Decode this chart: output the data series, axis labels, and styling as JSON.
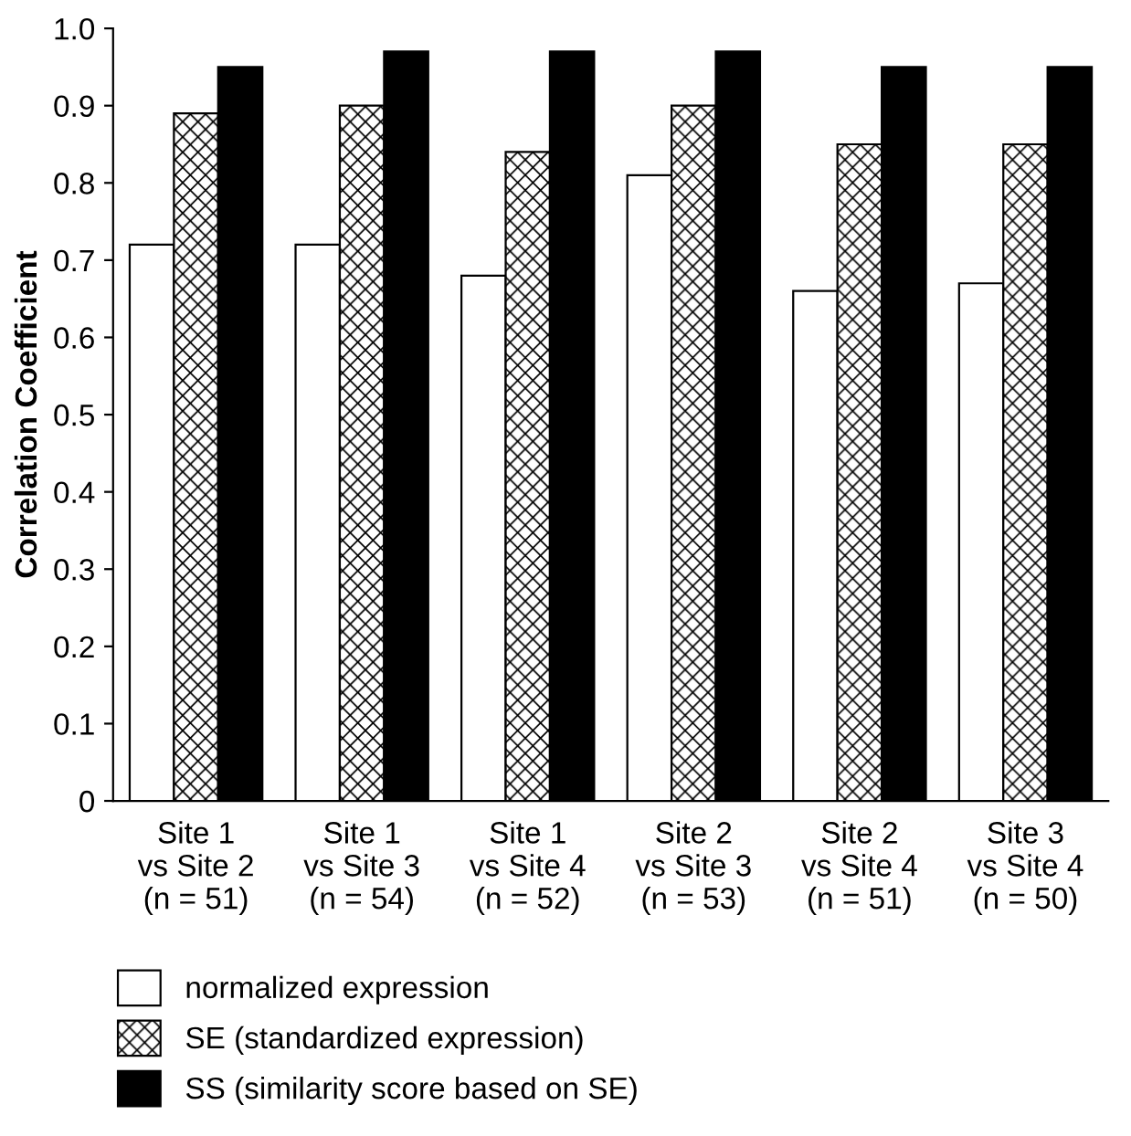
{
  "chart_data": {
    "type": "bar",
    "ylabel": "Correlation Coefficient",
    "categories": [
      "Site 1\nvs Site 2\n(n = 51)",
      "Site 1\nvs Site 3\n(n = 54)",
      "Site 1\nvs Site 4\n(n = 52)",
      "Site 2\nvs Site 3\n(n = 53)",
      "Site 2\nvs Site 4\n(n = 51)",
      "Site 3\nvs Site 4\n(n = 50)"
    ],
    "series": [
      {
        "name": "normalized expression",
        "color": "#ffffff",
        "values": [
          0.72,
          0.72,
          0.68,
          0.81,
          0.66,
          0.67
        ]
      },
      {
        "name": "SE (standardized expression)",
        "color": "#000000",
        "values": [
          0.89,
          0.9,
          0.84,
          0.9,
          0.85,
          0.85
        ]
      },
      {
        "name": "SS (similarity score based on SE)",
        "color": "#000000",
        "values": [
          0.95,
          0.97,
          0.97,
          0.97,
          0.95,
          0.95
        ]
      }
    ],
    "ylim": [
      0,
      1.0
    ],
    "yticks": [
      {
        "value": 0,
        "label": "0"
      },
      0.1,
      0.2,
      0.3,
      0.4,
      0.5,
      0.6,
      0.7,
      0.8,
      0.9,
      {
        "value": 1.0,
        "label": "1.0"
      }
    ],
    "grid": false,
    "legend": "bottom"
  }
}
